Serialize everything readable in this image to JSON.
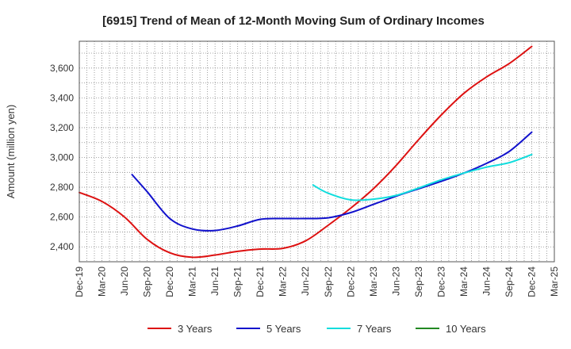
{
  "chart_data": {
    "type": "line",
    "title": "[6915]  Trend of Mean of 12-Month Moving Sum of Ordinary Incomes",
    "xlabel": "",
    "ylabel": "Amount (million yen)",
    "ylim": [
      2300,
      3780
    ],
    "yticks": [
      2400,
      2600,
      2800,
      3000,
      3200,
      3400,
      3600
    ],
    "ytick_labels": [
      "2,400",
      "2,600",
      "2,800",
      "3,000",
      "3,200",
      "3,400",
      "3,600"
    ],
    "x_categories": [
      "Dec-19",
      "Mar-20",
      "Jun-20",
      "Sep-20",
      "Dec-20",
      "Mar-21",
      "Jun-21",
      "Sep-21",
      "Dec-21",
      "Mar-22",
      "Jun-22",
      "Sep-22",
      "Dec-22",
      "Mar-23",
      "Jun-23",
      "Sep-23",
      "Dec-23",
      "Mar-24",
      "Jun-24",
      "Sep-24",
      "Dec-24",
      "Mar-25"
    ],
    "series": [
      {
        "name": "3 Years",
        "color": "#dd1111",
        "points": [
          [
            0,
            2765
          ],
          [
            1,
            2705
          ],
          [
            2,
            2600
          ],
          [
            3,
            2450
          ],
          [
            4,
            2360
          ],
          [
            5,
            2330
          ],
          [
            6,
            2345
          ],
          [
            7,
            2370
          ],
          [
            8,
            2385
          ],
          [
            9,
            2390
          ],
          [
            10,
            2440
          ],
          [
            11,
            2545
          ],
          [
            12,
            2660
          ],
          [
            13,
            2790
          ],
          [
            14,
            2945
          ],
          [
            15,
            3120
          ],
          [
            16,
            3285
          ],
          [
            17,
            3430
          ],
          [
            18,
            3540
          ],
          [
            19,
            3630
          ],
          [
            20,
            3745
          ]
        ]
      },
      {
        "name": "5 Years",
        "color": "#1111cc",
        "points": [
          [
            2.33,
            2885
          ],
          [
            3,
            2770
          ],
          [
            4,
            2590
          ],
          [
            5,
            2520
          ],
          [
            6,
            2510
          ],
          [
            7,
            2540
          ],
          [
            8,
            2585
          ],
          [
            9,
            2590
          ],
          [
            10,
            2590
          ],
          [
            11,
            2595
          ],
          [
            12,
            2630
          ],
          [
            13,
            2685
          ],
          [
            14,
            2740
          ],
          [
            15,
            2790
          ],
          [
            16,
            2840
          ],
          [
            17,
            2895
          ],
          [
            18,
            2960
          ],
          [
            19,
            3040
          ],
          [
            20,
            3170
          ]
        ]
      },
      {
        "name": "7 Years",
        "color": "#11dddd",
        "points": [
          [
            10.33,
            2815
          ],
          [
            11,
            2760
          ],
          [
            12,
            2715
          ],
          [
            13,
            2720
          ],
          [
            14,
            2745
          ],
          [
            15,
            2795
          ],
          [
            16,
            2850
          ],
          [
            17,
            2895
          ],
          [
            18,
            2935
          ],
          [
            19,
            2965
          ],
          [
            20,
            3020
          ]
        ]
      },
      {
        "name": "10 Years",
        "color": "#228822",
        "points": []
      }
    ],
    "legend_position": "bottom",
    "grid": true
  }
}
